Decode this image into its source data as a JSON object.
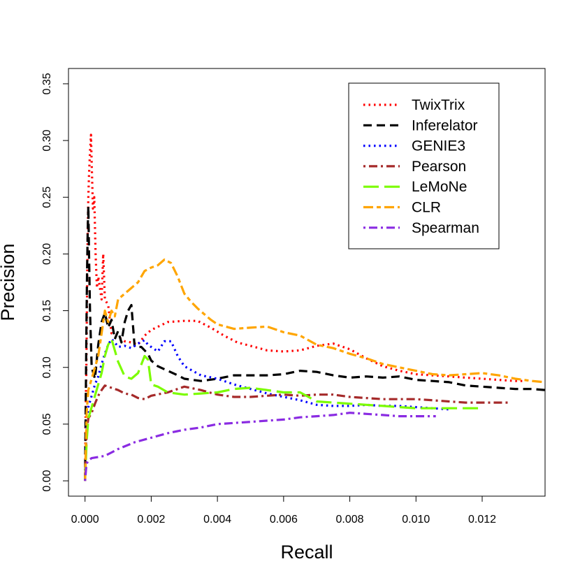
{
  "chart_data": {
    "type": "line",
    "title": "",
    "xlabel": "Recall",
    "ylabel": "Precision",
    "xlim": [
      -0.0005,
      0.0139
    ],
    "ylim": [
      -0.0135,
      0.3635
    ],
    "xticks": [
      0.0,
      0.002,
      0.004,
      0.006,
      0.008,
      0.01,
      0.012
    ],
    "xtick_labels": [
      "0.000",
      "0.002",
      "0.004",
      "0.006",
      "0.008",
      "0.010",
      "0.012"
    ],
    "yticks": [
      0.0,
      0.05,
      0.1,
      0.15,
      0.2,
      0.25,
      0.3,
      0.35
    ],
    "ytick_labels": [
      "0.00",
      "0.05",
      "0.10",
      "0.15",
      "0.20",
      "0.25",
      "0.30",
      "0.35"
    ],
    "grid": false,
    "legend_position": "top-right",
    "series": [
      {
        "name": "TwixTrix",
        "color": "#ff0000",
        "dash": "dotted",
        "points": [
          [
            0.0,
            0.0
          ],
          [
            2e-05,
            0.06
          ],
          [
            4e-05,
            0.1
          ],
          [
            6e-05,
            0.16
          ],
          [
            8e-05,
            0.22
          ],
          [
            0.0001,
            0.25
          ],
          [
            0.00012,
            0.27
          ],
          [
            0.00015,
            0.29
          ],
          [
            0.00018,
            0.305
          ],
          [
            0.0002,
            0.28
          ],
          [
            0.00024,
            0.24
          ],
          [
            0.00028,
            0.25
          ],
          [
            0.00032,
            0.2
          ],
          [
            0.00036,
            0.17
          ],
          [
            0.0004,
            0.18
          ],
          [
            0.00045,
            0.17
          ],
          [
            0.0005,
            0.16
          ],
          [
            0.00055,
            0.2
          ],
          [
            0.0006,
            0.16
          ],
          [
            0.0007,
            0.155
          ],
          [
            0.0008,
            0.13
          ],
          [
            0.001,
            0.127
          ],
          [
            0.0012,
            0.123
          ],
          [
            0.0014,
            0.122
          ],
          [
            0.0016,
            0.12
          ],
          [
            0.0018,
            0.128
          ],
          [
            0.002,
            0.133
          ],
          [
            0.0025,
            0.14
          ],
          [
            0.003,
            0.141
          ],
          [
            0.0034,
            0.141
          ],
          [
            0.0038,
            0.135
          ],
          [
            0.0042,
            0.128
          ],
          [
            0.0046,
            0.122
          ],
          [
            0.005,
            0.119
          ],
          [
            0.0055,
            0.115
          ],
          [
            0.006,
            0.114
          ],
          [
            0.0065,
            0.115
          ],
          [
            0.007,
            0.119
          ],
          [
            0.0075,
            0.121
          ],
          [
            0.008,
            0.116
          ],
          [
            0.0085,
            0.108
          ],
          [
            0.009,
            0.101
          ],
          [
            0.0095,
            0.097
          ],
          [
            0.01,
            0.094
          ],
          [
            0.0105,
            0.093
          ],
          [
            0.011,
            0.092
          ],
          [
            0.0115,
            0.091
          ],
          [
            0.012,
            0.09
          ],
          [
            0.0125,
            0.089
          ],
          [
            0.013,
            0.088
          ],
          [
            0.0133,
            0.088
          ]
        ]
      },
      {
        "name": "Inferelator",
        "color": "#000000",
        "dash": "dashed",
        "points": [
          [
            0.0,
            0.0
          ],
          [
            2e-05,
            0.06
          ],
          [
            4e-05,
            0.13
          ],
          [
            6e-05,
            0.18
          ],
          [
            8e-05,
            0.22
          ],
          [
            0.0001,
            0.242
          ],
          [
            0.00012,
            0.2
          ],
          [
            0.00015,
            0.15
          ],
          [
            0.0002,
            0.1
          ],
          [
            0.0003,
            0.09
          ],
          [
            0.0004,
            0.12
          ],
          [
            0.0005,
            0.14
          ],
          [
            0.0006,
            0.148
          ],
          [
            0.0007,
            0.135
          ],
          [
            0.0008,
            0.142
          ],
          [
            0.0009,
            0.125
          ],
          [
            0.001,
            0.132
          ],
          [
            0.0011,
            0.122
          ],
          [
            0.0012,
            0.14
          ],
          [
            0.0013,
            0.15
          ],
          [
            0.0014,
            0.155
          ],
          [
            0.0015,
            0.118
          ],
          [
            0.0017,
            0.118
          ],
          [
            0.0019,
            0.112
          ],
          [
            0.002,
            0.106
          ],
          [
            0.0022,
            0.101
          ],
          [
            0.0025,
            0.097
          ],
          [
            0.0028,
            0.093
          ],
          [
            0.003,
            0.09
          ],
          [
            0.0035,
            0.088
          ],
          [
            0.004,
            0.09
          ],
          [
            0.0045,
            0.093
          ],
          [
            0.005,
            0.093
          ],
          [
            0.0055,
            0.093
          ],
          [
            0.006,
            0.094
          ],
          [
            0.0065,
            0.097
          ],
          [
            0.007,
            0.096
          ],
          [
            0.0075,
            0.093
          ],
          [
            0.008,
            0.091
          ],
          [
            0.0085,
            0.092
          ],
          [
            0.009,
            0.091
          ],
          [
            0.0095,
            0.092
          ],
          [
            0.01,
            0.089
          ],
          [
            0.0105,
            0.088
          ],
          [
            0.011,
            0.087
          ],
          [
            0.0115,
            0.084
          ],
          [
            0.012,
            0.083
          ],
          [
            0.0125,
            0.082
          ],
          [
            0.013,
            0.081
          ],
          [
            0.0135,
            0.081
          ],
          [
            0.0139,
            0.08
          ]
        ]
      },
      {
        "name": "GENIE3",
        "color": "#0000ff",
        "dash": "dotted",
        "points": [
          [
            0.0,
            0.0
          ],
          [
            5e-05,
            0.05
          ],
          [
            0.0001,
            0.065
          ],
          [
            0.0002,
            0.075
          ],
          [
            0.0003,
            0.085
          ],
          [
            0.0004,
            0.092
          ],
          [
            0.0005,
            0.103
          ],
          [
            0.0006,
            0.112
          ],
          [
            0.0007,
            0.12
          ],
          [
            0.0008,
            0.125
          ],
          [
            0.0009,
            0.122
          ],
          [
            0.001,
            0.118
          ],
          [
            0.0012,
            0.119
          ],
          [
            0.0014,
            0.117
          ],
          [
            0.0016,
            0.121
          ],
          [
            0.0018,
            0.124
          ],
          [
            0.0019,
            0.12
          ],
          [
            0.002,
            0.118
          ],
          [
            0.0022,
            0.114
          ],
          [
            0.0024,
            0.123
          ],
          [
            0.0026,
            0.123
          ],
          [
            0.0028,
            0.11
          ],
          [
            0.003,
            0.101
          ],
          [
            0.0035,
            0.093
          ],
          [
            0.004,
            0.09
          ],
          [
            0.0045,
            0.085
          ],
          [
            0.005,
            0.081
          ],
          [
            0.0055,
            0.077
          ],
          [
            0.006,
            0.074
          ],
          [
            0.0065,
            0.071
          ],
          [
            0.007,
            0.067
          ],
          [
            0.0075,
            0.066
          ],
          [
            0.008,
            0.066
          ],
          [
            0.0085,
            0.067
          ],
          [
            0.009,
            0.066
          ],
          [
            0.0095,
            0.066
          ],
          [
            0.01,
            0.065
          ],
          [
            0.0105,
            0.064
          ],
          [
            0.011,
            0.063
          ]
        ]
      },
      {
        "name": "Pearson",
        "color": "#a52a2a",
        "dash": "dotdash",
        "points": [
          [
            0.0,
            0.0
          ],
          [
            5e-05,
            0.045
          ],
          [
            0.0001,
            0.055
          ],
          [
            0.0002,
            0.06
          ],
          [
            0.0003,
            0.068
          ],
          [
            0.0004,
            0.075
          ],
          [
            0.0005,
            0.08
          ],
          [
            0.0006,
            0.084
          ],
          [
            0.0008,
            0.082
          ],
          [
            0.001,
            0.08
          ],
          [
            0.0012,
            0.077
          ],
          [
            0.0014,
            0.076
          ],
          [
            0.0016,
            0.073
          ],
          [
            0.0018,
            0.072
          ],
          [
            0.002,
            0.075
          ],
          [
            0.0025,
            0.078
          ],
          [
            0.003,
            0.083
          ],
          [
            0.0035,
            0.08
          ],
          [
            0.004,
            0.076
          ],
          [
            0.0045,
            0.074
          ],
          [
            0.005,
            0.074
          ],
          [
            0.0055,
            0.075
          ],
          [
            0.006,
            0.076
          ],
          [
            0.0065,
            0.075
          ],
          [
            0.007,
            0.076
          ],
          [
            0.0075,
            0.076
          ],
          [
            0.008,
            0.074
          ],
          [
            0.0085,
            0.073
          ],
          [
            0.009,
            0.072
          ],
          [
            0.0095,
            0.072
          ],
          [
            0.01,
            0.072
          ],
          [
            0.0105,
            0.071
          ],
          [
            0.011,
            0.07
          ],
          [
            0.0115,
            0.069
          ],
          [
            0.012,
            0.069
          ],
          [
            0.0125,
            0.069
          ],
          [
            0.0128,
            0.069
          ]
        ]
      },
      {
        "name": "LeMoNe",
        "color": "#7cfc00",
        "dash": "longdash",
        "points": [
          [
            0.0,
            0.0
          ],
          [
            5e-05,
            0.035
          ],
          [
            0.0001,
            0.055
          ],
          [
            0.0002,
            0.065
          ],
          [
            0.0003,
            0.075
          ],
          [
            0.0004,
            0.085
          ],
          [
            0.0005,
            0.095
          ],
          [
            0.0006,
            0.11
          ],
          [
            0.0007,
            0.12
          ],
          [
            0.0008,
            0.125
          ],
          [
            0.0009,
            0.115
          ],
          [
            0.001,
            0.105
          ],
          [
            0.0012,
            0.092
          ],
          [
            0.0014,
            0.09
          ],
          [
            0.0016,
            0.095
          ],
          [
            0.0018,
            0.11
          ],
          [
            0.0019,
            0.107
          ],
          [
            0.002,
            0.085
          ],
          [
            0.0022,
            0.083
          ],
          [
            0.0025,
            0.078
          ],
          [
            0.003,
            0.076
          ],
          [
            0.0035,
            0.077
          ],
          [
            0.004,
            0.078
          ],
          [
            0.0045,
            0.081
          ],
          [
            0.005,
            0.082
          ],
          [
            0.0055,
            0.08
          ],
          [
            0.006,
            0.078
          ],
          [
            0.0065,
            0.078
          ],
          [
            0.007,
            0.07
          ],
          [
            0.0075,
            0.069
          ],
          [
            0.008,
            0.068
          ],
          [
            0.0085,
            0.067
          ],
          [
            0.009,
            0.066
          ],
          [
            0.0095,
            0.065
          ],
          [
            0.01,
            0.064
          ],
          [
            0.0105,
            0.064
          ],
          [
            0.011,
            0.064
          ],
          [
            0.0115,
            0.064
          ],
          [
            0.012,
            0.064
          ]
        ]
      },
      {
        "name": "CLR",
        "color": "#ffa500",
        "dash": "twodash",
        "points": [
          [
            0.0,
            0.0
          ],
          [
            5e-05,
            0.06
          ],
          [
            0.0001,
            0.08
          ],
          [
            0.0002,
            0.09
          ],
          [
            0.0003,
            0.1
          ],
          [
            0.0004,
            0.11
          ],
          [
            0.0005,
            0.13
          ],
          [
            0.0006,
            0.15
          ],
          [
            0.0007,
            0.14
          ],
          [
            0.0008,
            0.15
          ],
          [
            0.0009,
            0.145
          ],
          [
            0.001,
            0.16
          ],
          [
            0.0012,
            0.165
          ],
          [
            0.0014,
            0.17
          ],
          [
            0.0016,
            0.175
          ],
          [
            0.0018,
            0.185
          ],
          [
            0.002,
            0.188
          ],
          [
            0.0022,
            0.19
          ],
          [
            0.0024,
            0.195
          ],
          [
            0.0026,
            0.192
          ],
          [
            0.0028,
            0.18
          ],
          [
            0.003,
            0.165
          ],
          [
            0.0032,
            0.158
          ],
          [
            0.0034,
            0.152
          ],
          [
            0.0036,
            0.147
          ],
          [
            0.0038,
            0.142
          ],
          [
            0.004,
            0.138
          ],
          [
            0.0045,
            0.134
          ],
          [
            0.005,
            0.135
          ],
          [
            0.0055,
            0.136
          ],
          [
            0.006,
            0.131
          ],
          [
            0.0065,
            0.128
          ],
          [
            0.007,
            0.12
          ],
          [
            0.0075,
            0.117
          ],
          [
            0.008,
            0.112
          ],
          [
            0.0085,
            0.108
          ],
          [
            0.009,
            0.103
          ],
          [
            0.0095,
            0.1
          ],
          [
            0.01,
            0.097
          ],
          [
            0.0105,
            0.094
          ],
          [
            0.011,
            0.093
          ],
          [
            0.0115,
            0.094
          ],
          [
            0.012,
            0.095
          ],
          [
            0.0125,
            0.093
          ],
          [
            0.013,
            0.09
          ],
          [
            0.0135,
            0.088
          ],
          [
            0.0139,
            0.087
          ]
        ]
      },
      {
        "name": "Spearman",
        "color": "#8a2be2",
        "dash": "dotdash",
        "points": [
          [
            0.0,
            0.0
          ],
          [
            3e-05,
            0.01
          ],
          [
            5e-05,
            0.015
          ],
          [
            0.0001,
            0.018
          ],
          [
            0.0002,
            0.02
          ],
          [
            0.0004,
            0.021
          ],
          [
            0.0006,
            0.022
          ],
          [
            0.0008,
            0.025
          ],
          [
            0.001,
            0.028
          ],
          [
            0.0015,
            0.034
          ],
          [
            0.002,
            0.038
          ],
          [
            0.0025,
            0.042
          ],
          [
            0.003,
            0.045
          ],
          [
            0.0035,
            0.047
          ],
          [
            0.004,
            0.05
          ],
          [
            0.0045,
            0.051
          ],
          [
            0.005,
            0.052
          ],
          [
            0.0055,
            0.053
          ],
          [
            0.006,
            0.054
          ],
          [
            0.0065,
            0.056
          ],
          [
            0.007,
            0.057
          ],
          [
            0.0075,
            0.058
          ],
          [
            0.008,
            0.06
          ],
          [
            0.0085,
            0.059
          ],
          [
            0.009,
            0.058
          ],
          [
            0.0095,
            0.057
          ],
          [
            0.01,
            0.057
          ],
          [
            0.0103,
            0.057
          ],
          [
            0.0106,
            0.057
          ]
        ]
      }
    ]
  }
}
